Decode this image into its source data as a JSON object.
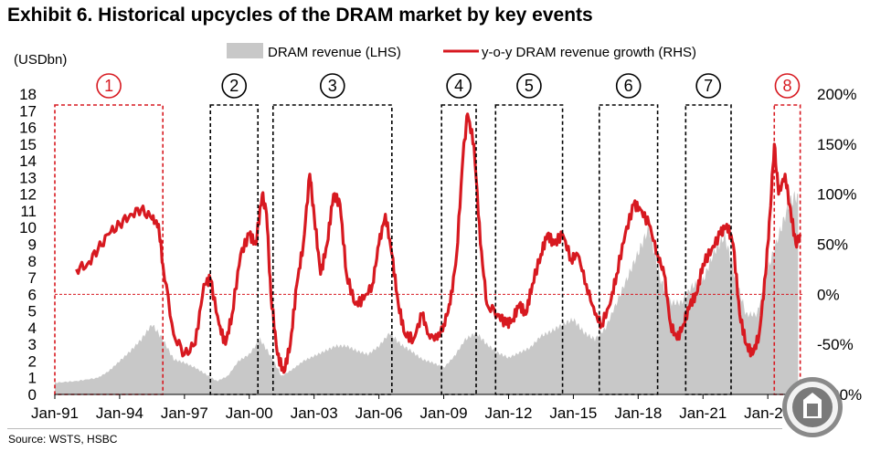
{
  "header": {
    "title": "Exhibit 6. Historical upcycles of the DRAM market by key events",
    "source": "Source: WSTS, HSBC"
  },
  "colors": {
    "revenue": "#c8c8c8",
    "growth": "#d71920",
    "highlight": "#d71920",
    "event_box": "#000000",
    "zero_line": "#d71920"
  },
  "chart_data": {
    "type": "bar+line",
    "title": "Exhibit 6. Historical upcycles of the DRAM market by key events",
    "left_axis": {
      "label": "(USDbn)",
      "min": 0,
      "max": 18,
      "ticks": [
        0,
        1,
        2,
        3,
        4,
        5,
        6,
        7,
        8,
        9,
        10,
        11,
        12,
        13,
        14,
        15,
        16,
        17,
        18
      ]
    },
    "right_axis": {
      "min": -100,
      "max": 200,
      "ticks": [
        -100,
        -50,
        0,
        50,
        100,
        150,
        200
      ],
      "tick_labels": [
        "-100%",
        "-50%",
        "0%",
        "50%",
        "100%",
        "150%",
        "200%"
      ]
    },
    "x_axis": {
      "min": 1991.0,
      "max": 2025.6,
      "ticks": [
        1991,
        1994,
        1997,
        2000,
        2003,
        2006,
        2009,
        2012,
        2015,
        2018,
        2021,
        2024
      ],
      "tick_labels": [
        "Jan-91",
        "Jan-94",
        "Jan-97",
        "Jan-00",
        "Jan-03",
        "Jan-06",
        "Jan-09",
        "Jan-12",
        "Jan-15",
        "Jan-18",
        "Jan-21",
        "Jan-24"
      ]
    },
    "legend": {
      "position": "top",
      "entries": [
        "DRAM revenue (LHS)",
        "y-o-y DRAM revenue growth (RHS)"
      ]
    },
    "series": [
      {
        "name": "DRAM revenue (LHS)",
        "type": "area",
        "axis": "left",
        "points": [
          [
            1991.0,
            0.7
          ],
          [
            1992.0,
            0.8
          ],
          [
            1993.0,
            1.0
          ],
          [
            1993.5,
            1.4
          ],
          [
            1994.0,
            2.0
          ],
          [
            1994.5,
            2.6
          ],
          [
            1995.0,
            3.3
          ],
          [
            1995.5,
            4.2
          ],
          [
            1996.0,
            3.3
          ],
          [
            1996.5,
            2.1
          ],
          [
            1997.0,
            1.9
          ],
          [
            1997.5,
            1.6
          ],
          [
            1998.0,
            1.2
          ],
          [
            1998.5,
            0.8
          ],
          [
            1999.0,
            1.1
          ],
          [
            1999.5,
            2.0
          ],
          [
            2000.0,
            2.4
          ],
          [
            2000.5,
            3.3
          ],
          [
            2001.0,
            2.3
          ],
          [
            2001.5,
            1.1
          ],
          [
            2002.0,
            1.5
          ],
          [
            2002.5,
            2.0
          ],
          [
            2003.0,
            2.3
          ],
          [
            2003.5,
            2.6
          ],
          [
            2004.0,
            2.9
          ],
          [
            2004.5,
            2.9
          ],
          [
            2005.0,
            2.6
          ],
          [
            2005.5,
            2.4
          ],
          [
            2006.0,
            2.9
          ],
          [
            2006.5,
            3.7
          ],
          [
            2007.0,
            3.0
          ],
          [
            2007.5,
            2.6
          ],
          [
            2008.0,
            2.1
          ],
          [
            2008.5,
            1.9
          ],
          [
            2009.0,
            1.6
          ],
          [
            2009.5,
            2.3
          ],
          [
            2010.0,
            3.3
          ],
          [
            2010.5,
            3.7
          ],
          [
            2011.0,
            3.0
          ],
          [
            2011.5,
            2.5
          ],
          [
            2012.0,
            2.2
          ],
          [
            2012.5,
            2.5
          ],
          [
            2013.0,
            2.8
          ],
          [
            2013.5,
            3.5
          ],
          [
            2014.0,
            3.8
          ],
          [
            2014.5,
            4.2
          ],
          [
            2015.0,
            4.5
          ],
          [
            2015.5,
            3.7
          ],
          [
            2016.0,
            3.3
          ],
          [
            2016.5,
            4.0
          ],
          [
            2017.0,
            5.5
          ],
          [
            2017.5,
            7.0
          ],
          [
            2018.0,
            8.5
          ],
          [
            2018.5,
            10.0
          ],
          [
            2019.0,
            7.0
          ],
          [
            2019.5,
            5.5
          ],
          [
            2020.0,
            5.5
          ],
          [
            2020.5,
            6.5
          ],
          [
            2021.0,
            6.8
          ],
          [
            2021.5,
            8.5
          ],
          [
            2022.0,
            9.5
          ],
          [
            2022.5,
            7.0
          ],
          [
            2023.0,
            4.8
          ],
          [
            2023.5,
            4.8
          ],
          [
            2024.0,
            7.5
          ],
          [
            2024.5,
            9.5
          ],
          [
            2025.0,
            11.5
          ],
          [
            2025.4,
            12.0
          ]
        ]
      },
      {
        "name": "y-o-y DRAM revenue growth (RHS)",
        "type": "line",
        "axis": "right",
        "points": [
          [
            1992.0,
            25
          ],
          [
            1992.5,
            30
          ],
          [
            1993.0,
            45
          ],
          [
            1993.5,
            60
          ],
          [
            1994.0,
            70
          ],
          [
            1994.5,
            80
          ],
          [
            1995.0,
            85
          ],
          [
            1995.5,
            75
          ],
          [
            1995.8,
            70
          ],
          [
            1996.0,
            30
          ],
          [
            1996.5,
            -40
          ],
          [
            1997.0,
            -60
          ],
          [
            1997.5,
            -50
          ],
          [
            1997.9,
            10
          ],
          [
            1998.2,
            15
          ],
          [
            1998.6,
            -30
          ],
          [
            1998.9,
            -50
          ],
          [
            1999.2,
            -20
          ],
          [
            1999.6,
            40
          ],
          [
            2000.0,
            60
          ],
          [
            2000.3,
            50
          ],
          [
            2000.6,
            100
          ],
          [
            2000.8,
            80
          ],
          [
            2001.0,
            0
          ],
          [
            2001.3,
            -60
          ],
          [
            2001.6,
            -78
          ],
          [
            2001.9,
            -50
          ],
          [
            2002.2,
            10
          ],
          [
            2002.5,
            50
          ],
          [
            2002.8,
            120
          ],
          [
            2003.0,
            80
          ],
          [
            2003.3,
            20
          ],
          [
            2003.6,
            50
          ],
          [
            2003.9,
            100
          ],
          [
            2004.2,
            90
          ],
          [
            2004.5,
            20
          ],
          [
            2004.9,
            -10
          ],
          [
            2005.3,
            -5
          ],
          [
            2005.7,
            10
          ],
          [
            2006.0,
            50
          ],
          [
            2006.3,
            80
          ],
          [
            2006.6,
            40
          ],
          [
            2006.9,
            -10
          ],
          [
            2007.2,
            -40
          ],
          [
            2007.6,
            -45
          ],
          [
            2008.0,
            -20
          ],
          [
            2008.3,
            -40
          ],
          [
            2008.7,
            -45
          ],
          [
            2009.0,
            -30
          ],
          [
            2009.3,
            -10
          ],
          [
            2009.6,
            40
          ],
          [
            2009.9,
            140
          ],
          [
            2010.1,
            180
          ],
          [
            2010.4,
            150
          ],
          [
            2010.7,
            50
          ],
          [
            2011.0,
            -10
          ],
          [
            2011.5,
            -20
          ],
          [
            2011.9,
            -30
          ],
          [
            2012.2,
            -25
          ],
          [
            2012.5,
            -10
          ],
          [
            2012.8,
            -20
          ],
          [
            2013.1,
            10
          ],
          [
            2013.5,
            40
          ],
          [
            2013.8,
            60
          ],
          [
            2014.1,
            50
          ],
          [
            2014.5,
            60
          ],
          [
            2014.9,
            35
          ],
          [
            2015.2,
            40
          ],
          [
            2015.6,
            10
          ],
          [
            2016.0,
            -20
          ],
          [
            2016.3,
            -30
          ],
          [
            2016.7,
            -10
          ],
          [
            2017.0,
            20
          ],
          [
            2017.4,
            60
          ],
          [
            2017.8,
            90
          ],
          [
            2018.1,
            85
          ],
          [
            2018.5,
            70
          ],
          [
            2018.9,
            40
          ],
          [
            2019.2,
            20
          ],
          [
            2019.5,
            -30
          ],
          [
            2019.8,
            -45
          ],
          [
            2020.1,
            -30
          ],
          [
            2020.4,
            -10
          ],
          [
            2020.7,
            0
          ],
          [
            2021.0,
            30
          ],
          [
            2021.4,
            45
          ],
          [
            2021.8,
            60
          ],
          [
            2022.1,
            70
          ],
          [
            2022.4,
            50
          ],
          [
            2022.7,
            -20
          ],
          [
            2023.0,
            -50
          ],
          [
            2023.3,
            -60
          ],
          [
            2023.6,
            -40
          ],
          [
            2023.9,
            20
          ],
          [
            2024.1,
            80
          ],
          [
            2024.3,
            150
          ],
          [
            2024.5,
            100
          ],
          [
            2024.8,
            120
          ],
          [
            2025.0,
            90
          ],
          [
            2025.3,
            50
          ],
          [
            2025.5,
            60
          ]
        ]
      }
    ],
    "annotations": [
      {
        "label": "1",
        "style": "red",
        "x_start": 1991.0,
        "x_end": 1996.0
      },
      {
        "label": "2",
        "style": "black",
        "x_start": 1998.2,
        "x_end": 2000.4
      },
      {
        "label": "3",
        "style": "black",
        "x_start": 2001.1,
        "x_end": 2006.6
      },
      {
        "label": "4",
        "style": "black",
        "x_start": 2008.9,
        "x_end": 2010.5
      },
      {
        "label": "5",
        "style": "black",
        "x_start": 2011.4,
        "x_end": 2014.5
      },
      {
        "label": "6",
        "style": "black",
        "x_start": 2016.2,
        "x_end": 2018.9
      },
      {
        "label": "7",
        "style": "black",
        "x_start": 2020.2,
        "x_end": 2022.3
      },
      {
        "label": "8",
        "style": "red",
        "x_start": 2024.3,
        "x_end": 2025.5
      }
    ],
    "reference_lines": [
      {
        "axis": "right",
        "value": 0,
        "style": "dashed"
      }
    ]
  }
}
